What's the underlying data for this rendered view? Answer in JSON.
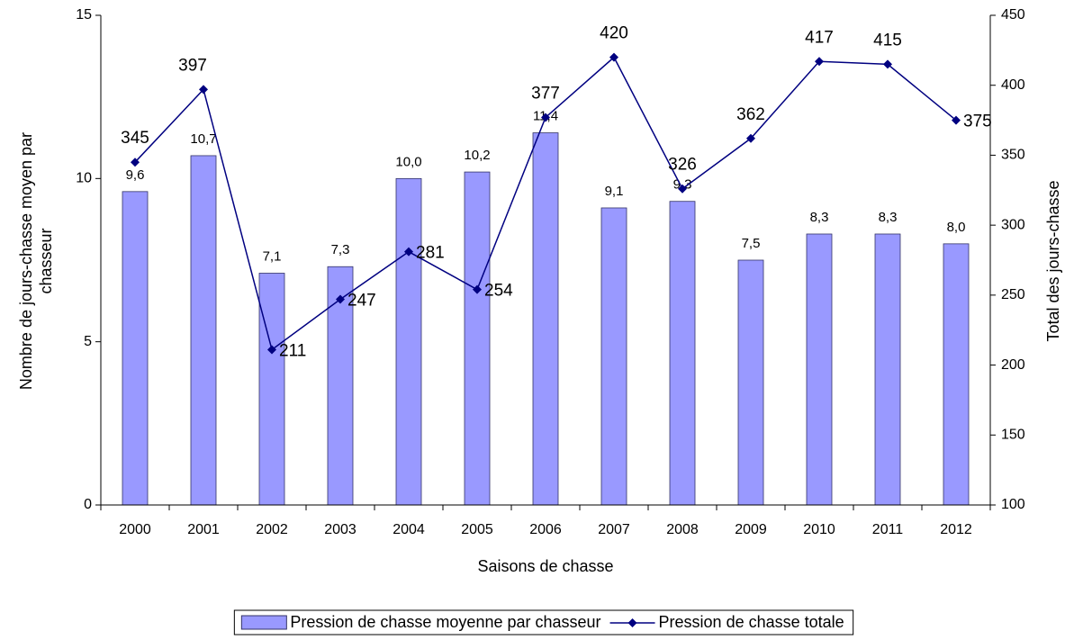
{
  "chart_data": {
    "type": "combo",
    "xlabel": "Saisons de chasse",
    "ylabel": "Nombre de jours-chasse moyen par chasseur",
    "y2label": "Total des jours-chasse",
    "categories": [
      "2000",
      "2001",
      "2002",
      "2003",
      "2004",
      "2005",
      "2006",
      "2007",
      "2008",
      "2009",
      "2010",
      "2011",
      "2012"
    ],
    "series": [
      {
        "name": "Pression de chasse moyenne par chasseur",
        "type": "bar",
        "color": "#9999ff",
        "values": [
          9.6,
          10.7,
          7.1,
          7.3,
          10.0,
          10.2,
          11.4,
          9.1,
          9.3,
          7.5,
          8.3,
          8.3,
          8.0
        ],
        "value_labels": [
          "9,6",
          "10,7",
          "7,1",
          "7,3",
          "10,0",
          "10,2",
          "11,4",
          "9,1",
          "9,3",
          "7,5",
          "8,3",
          "8,3",
          "8,0"
        ]
      },
      {
        "name": "Pression de chasse totale",
        "type": "line",
        "axis": "y2",
        "color": "#000080",
        "values": [
          345,
          397,
          211,
          247,
          281,
          254,
          377,
          420,
          326,
          362,
          417,
          415,
          375
        ]
      }
    ],
    "ylim": [
      0,
      15
    ],
    "yticks": [
      0,
      5,
      10,
      15
    ],
    "y2lim": [
      100,
      450
    ],
    "y2ticks": [
      100,
      150,
      200,
      250,
      300,
      350,
      400,
      450
    ],
    "legend": "bottom"
  }
}
